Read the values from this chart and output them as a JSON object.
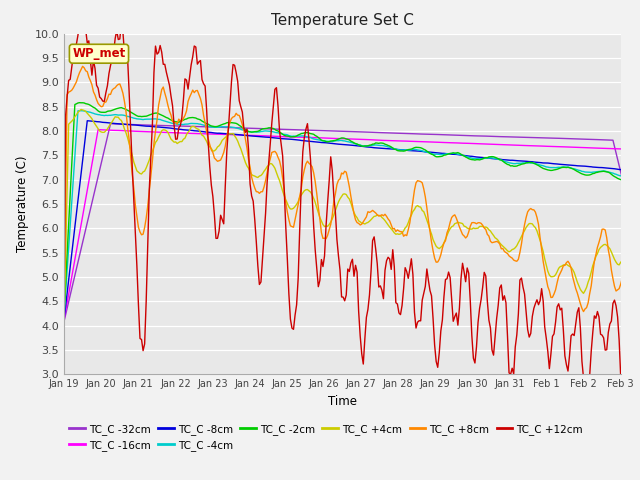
{
  "title": "Temperature Set C",
  "xlabel": "Time",
  "ylabel": "Temperature (C)",
  "ylim": [
    3.0,
    10.0
  ],
  "yticks": [
    3.0,
    3.5,
    4.0,
    4.5,
    5.0,
    5.5,
    6.0,
    6.5,
    7.0,
    7.5,
    8.0,
    8.5,
    9.0,
    9.5,
    10.0
  ],
  "series_order": [
    "TC_C -32cm",
    "TC_C -16cm",
    "TC_C -8cm",
    "TC_C -4cm",
    "TC_C -2cm",
    "TC_C +4cm",
    "TC_C +8cm",
    "TC_C +12cm"
  ],
  "colors": {
    "TC_C -32cm": "#9933cc",
    "TC_C -16cm": "#ff00ff",
    "TC_C -8cm": "#0000dd",
    "TC_C -4cm": "#00cccc",
    "TC_C -2cm": "#00cc00",
    "TC_C +4cm": "#cccc00",
    "TC_C +8cm": "#ff8800",
    "TC_C +12cm": "#cc0000"
  },
  "lw": 1.0,
  "xtick_labels": [
    "Jan 19",
    "Jan 20",
    "Jan 21",
    "Jan 22",
    "Jan 23",
    "Jan 24",
    "Jan 25",
    "Jan 26",
    "Jan 27",
    "Jan 28",
    "Jan 29",
    "Jan 30",
    "Jan 31",
    "Feb 1",
    "Feb 2",
    "Feb 3"
  ],
  "annotation_label": "WP_met",
  "annotation_color": "#cc0000",
  "annotation_bg": "#ffffcc",
  "annotation_border": "#999900",
  "fig_bg": "#f2f2f2",
  "plot_bg": "#e8e8e8"
}
